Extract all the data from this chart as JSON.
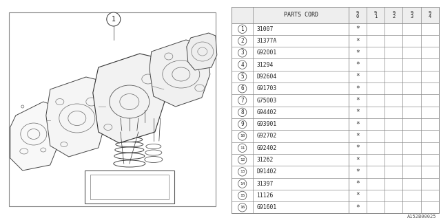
{
  "title": "A152B00025",
  "diagram_label": "1",
  "parts": [
    {
      "num": 1,
      "code": "31007"
    },
    {
      "num": 2,
      "code": "31377A"
    },
    {
      "num": 3,
      "code": "G92001"
    },
    {
      "num": 4,
      "code": "31294"
    },
    {
      "num": 5,
      "code": "D92604"
    },
    {
      "num": 6,
      "code": "G91703"
    },
    {
      "num": 7,
      "code": "G75003"
    },
    {
      "num": 8,
      "code": "G94402"
    },
    {
      "num": 9,
      "code": "G93901"
    },
    {
      "num": 10,
      "code": "G92702"
    },
    {
      "num": 11,
      "code": "G92402"
    },
    {
      "num": 12,
      "code": "31262"
    },
    {
      "num": 13,
      "code": "D91402"
    },
    {
      "num": 14,
      "code": "31397"
    },
    {
      "num": 15,
      "code": "11126"
    },
    {
      "num": 16,
      "code": "G91601"
    }
  ],
  "years": [
    "90",
    "91",
    "92",
    "93",
    "94"
  ],
  "bg_color": "#ffffff",
  "line_color": "#000000",
  "table_header": "PARTS CORD",
  "font_family": "monospace",
  "diagram_bg": "#ffffff",
  "border_color": "#888888",
  "table_line_color": "#888888",
  "text_color": "#333333"
}
